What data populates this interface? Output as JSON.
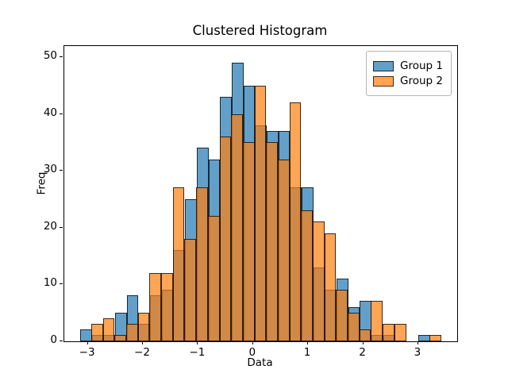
{
  "chart_data": {
    "type": "histogram",
    "title": "Clustered Histogram",
    "xlabel": "Data",
    "ylabel": "Freq",
    "xlim": [
      -3.427,
      3.708
    ],
    "ylim": [
      0,
      51.96
    ],
    "xticks": [
      -3,
      -2,
      -1,
      0,
      1,
      2,
      3
    ],
    "xtick_labels": [
      "−3",
      "−2",
      "−1",
      "0",
      "1",
      "2",
      "3"
    ],
    "yticks": [
      0,
      10,
      20,
      30,
      40,
      50
    ],
    "ytick_labels": [
      "0",
      "10",
      "20",
      "30",
      "40",
      "50"
    ],
    "grid": false,
    "legend_position": "upper right",
    "legend": [
      "Group 1",
      "Group 2"
    ],
    "colors": {
      "group1": "#1f77b4",
      "group2": "#ff7f0e",
      "edge": "#000000"
    },
    "alpha": 0.7,
    "series": [
      {
        "name": "Group 1",
        "color": "#1f77b4",
        "bin_start": -3.139,
        "bin_width": 0.2117,
        "counts": [
          2,
          1,
          1,
          5,
          8,
          3,
          8,
          9,
          16,
          25,
          34,
          32,
          43,
          49,
          45,
          38,
          37,
          37,
          27,
          27,
          13,
          9,
          11,
          6,
          7,
          1,
          1,
          0,
          0,
          1
        ]
      },
      {
        "name": "Group 2",
        "color": "#ff7f0e",
        "bin_start": -2.937,
        "bin_width": 0.2117,
        "counts": [
          3,
          4,
          1,
          3,
          5,
          12,
          12,
          27,
          18,
          27,
          22,
          36,
          40,
          35,
          45,
          35,
          32,
          42,
          23,
          21,
          19,
          9,
          5,
          2,
          7,
          3,
          3,
          0,
          0,
          1
        ]
      }
    ]
  }
}
